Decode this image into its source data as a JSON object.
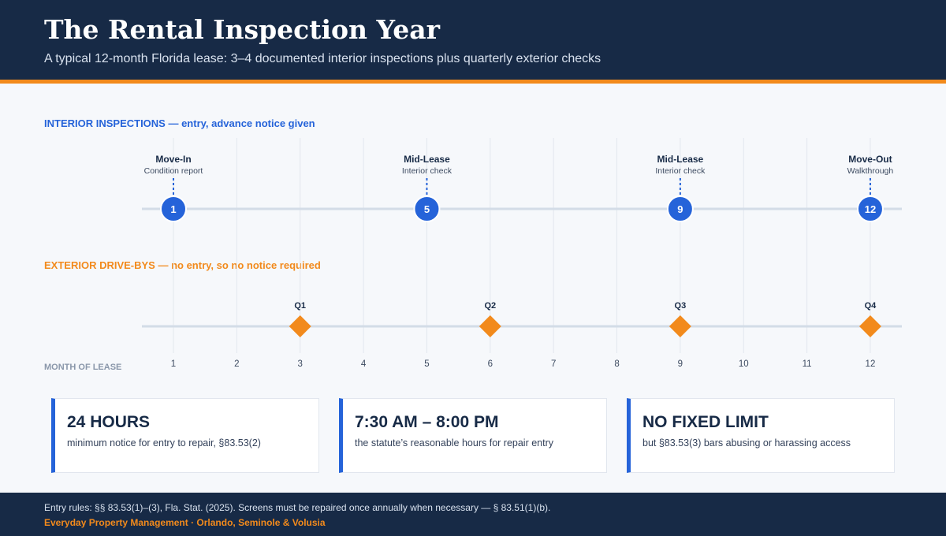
{
  "header": {
    "title": "The Rental Inspection Year",
    "subtitle": "A typical 12-month Florida lease: 3–4 documented interior inspections plus quarterly exterior checks"
  },
  "interior": {
    "label": "INTERIOR INSPECTIONS — entry, advance notice given",
    "events": [
      {
        "month": 1,
        "title": "Move-In",
        "detail": "Condition report"
      },
      {
        "month": 5,
        "title": "Mid-Lease",
        "detail": "Interior check"
      },
      {
        "month": 9,
        "title": "Mid-Lease",
        "detail": "Interior check"
      },
      {
        "month": 12,
        "title": "Move-Out",
        "detail": "Walkthrough"
      }
    ]
  },
  "exterior": {
    "label": "EXTERIOR DRIVE-BYS — no entry, so no notice required",
    "events": [
      {
        "month": 3,
        "label": "Q1"
      },
      {
        "month": 6,
        "label": "Q2"
      },
      {
        "month": 9,
        "label": "Q3"
      },
      {
        "month": 12,
        "label": "Q4"
      }
    ]
  },
  "axis": {
    "label": "MONTH OF LEASE",
    "months": [
      1,
      2,
      3,
      4,
      5,
      6,
      7,
      8,
      9,
      10,
      11,
      12
    ]
  },
  "stats": [
    {
      "value": "24 HOURS",
      "desc": "minimum notice for entry to repair, §83.53(2)"
    },
    {
      "value": "7:30 AM – 8:00 PM",
      "desc": "the statute’s reasonable hours for repair entry"
    },
    {
      "value": "NO FIXED LIMIT",
      "desc": "but §83.53(3) bars abusing or harassing access"
    }
  ],
  "footer": {
    "note": "Entry rules: §§ 83.53(1)–(3), Fla. Stat. (2025). Screens must be repaired once annually when necessary — § 83.51(1)(b).",
    "brand": "Everyday Property Management · Orlando, Seminole & Volusia"
  },
  "colors": {
    "navy": "#172a46",
    "accent_orange": "#f28a1c",
    "interior_blue": "#2563d9",
    "track": "#d3dce7"
  }
}
